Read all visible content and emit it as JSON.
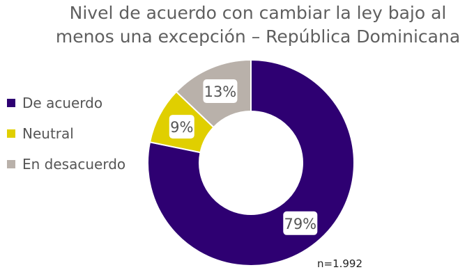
{
  "chart_data": {
    "type": "pie",
    "variant": "donut",
    "title": "Nivel de acuerdo con cambiar la ley bajo al menos una excepción –  República Dominicana",
    "categories": [
      "De  acuerdo",
      "Neutral",
      "En  desacuerdo"
    ],
    "values": [
      79,
      9,
      13
    ],
    "labels": [
      "79%",
      "9%",
      "13%"
    ],
    "colors": [
      "#2e0072",
      "#e0cf00",
      "#b9b1aa"
    ],
    "legend": "left",
    "note": "n=1.992"
  }
}
